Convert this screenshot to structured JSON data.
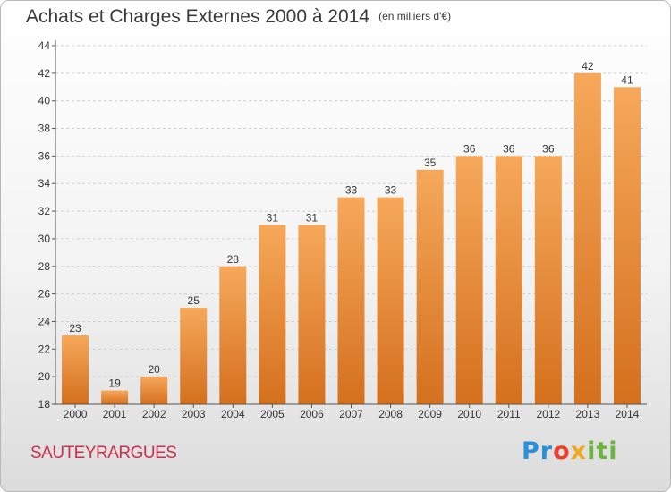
{
  "title": "Achats et Charges Externes 2000 à 2014",
  "unit_note": "(en milliers d'€)",
  "place": "SAUTEYRARGUES",
  "logo": {
    "parts": [
      "Pr",
      "o",
      "x",
      "iti"
    ],
    "colors": [
      "#2a8fd6",
      "#e8402a",
      "#f2a81d",
      "#6cb43f"
    ]
  },
  "colors": {
    "bar_light": "#f6a85a",
    "bar_dark": "#d4701e",
    "grid": "#cfcfcf",
    "axis": "#555555",
    "place": "#c7314f"
  },
  "chart_data": {
    "type": "bar",
    "title": "Achats et Charges Externes 2000 à 2014",
    "subtitle": "(en milliers d'€)",
    "categories": [
      "2000",
      "2001",
      "2002",
      "2003",
      "2004",
      "2005",
      "2006",
      "2007",
      "2008",
      "2009",
      "2010",
      "2011",
      "2012",
      "2013",
      "2014"
    ],
    "values": [
      23,
      19,
      20,
      25,
      28,
      31,
      31,
      33,
      33,
      35,
      36,
      36,
      36,
      42,
      41
    ],
    "ylim": [
      18,
      44
    ],
    "yticks": [
      18,
      20,
      22,
      24,
      26,
      28,
      30,
      32,
      34,
      36,
      38,
      40,
      42,
      44
    ],
    "grid": true,
    "xlabel": "",
    "ylabel": ""
  }
}
